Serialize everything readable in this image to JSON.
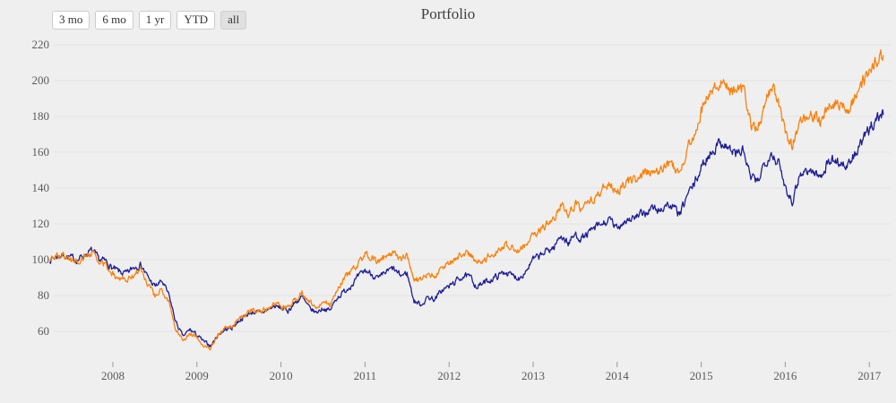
{
  "header": {
    "title": "Portfolio",
    "range_buttons": [
      {
        "label": "3 mo",
        "selected": false
      },
      {
        "label": "6 mo",
        "selected": false
      },
      {
        "label": "1 yr",
        "selected": false
      },
      {
        "label": "YTD",
        "selected": false
      },
      {
        "label": "all",
        "selected": true
      }
    ]
  },
  "chart_data": {
    "type": "line",
    "title": "Portfolio",
    "description": "Two indexed cumulative-return lines (base 100) from spring 2007 to early 2017",
    "x_start_decimal_year": 2007.25,
    "points_per_year": 12,
    "x_axis": {
      "tick_years": [
        2008,
        2009,
        2010,
        2011,
        2012,
        2013,
        2014,
        2015,
        2016,
        2017
      ]
    },
    "y_axis": {
      "ticks": [
        220,
        200,
        180,
        160,
        140,
        120,
        100,
        80,
        60
      ]
    },
    "ylim": [
      45,
      228
    ],
    "xlim_decimal_years": [
      2007.2,
      2017.35
    ],
    "grid": "horizontal",
    "legend_position": "none",
    "background_color": "#efefef",
    "gridline_color": "#e3e3e3",
    "tick_color": "#999999",
    "label_color": "#5a5a5a",
    "series": [
      {
        "name": "navy-line",
        "color": "#1e1e96",
        "monthly_values": [
          100,
          102,
          102.5,
          101,
          100,
          103,
          105,
          100,
          99,
          95,
          93,
          92,
          96,
          97.5,
          90,
          85,
          88,
          80,
          65,
          57,
          61,
          58,
          54,
          52,
          58,
          61,
          62,
          66,
          69,
          71,
          70,
          72,
          74,
          73,
          71.5,
          76,
          79,
          73,
          70.5,
          73,
          71.5,
          79,
          82,
          86,
          90,
          94,
          92,
          89,
          93,
          95,
          91,
          92.5,
          77,
          75,
          79,
          78,
          83,
          85,
          88,
          91,
          90,
          85,
          87,
          89,
          91,
          93.5,
          91,
          90,
          94,
          100,
          102,
          105,
          107,
          114,
          109,
          114,
          112,
          115,
          118,
          120,
          122,
          117,
          122,
          123,
          124,
          126,
          129,
          127,
          131,
          129,
          125,
          136,
          142,
          151,
          158,
          163,
          166,
          162,
          159,
          161,
          146,
          143,
          154,
          160,
          154,
          141,
          133,
          147,
          150,
          149,
          146,
          154,
          156,
          154,
          152,
          159,
          166,
          172,
          180,
          181
        ]
      },
      {
        "name": "orange-line",
        "color": "#f9820d",
        "monthly_values": [
          100,
          102.5,
          102,
          100,
          98.5,
          102,
          104.5,
          98,
          97,
          92,
          90,
          88,
          92,
          94,
          86,
          80,
          83,
          76,
          61,
          55,
          59,
          57,
          52,
          50.5,
          58,
          62,
          63,
          67,
          70,
          72,
          71,
          73,
          75,
          74,
          73,
          78,
          82,
          76,
          73.5,
          77,
          75,
          84,
          89,
          93,
          97,
          103,
          101,
          98,
          102,
          104,
          100,
          102,
          90,
          88.5,
          92,
          91,
          95,
          98,
          101,
          104,
          103,
          98,
          100,
          103,
          105,
          108,
          106,
          105,
          109,
          114,
          116,
          120,
          123,
          131,
          125,
          131,
          128,
          132,
          136,
          139,
          141,
          138,
          143,
          144,
          145,
          148,
          151,
          149,
          154,
          152,
          148,
          162,
          170,
          183,
          192,
          198,
          201,
          196,
          193,
          195,
          176,
          172,
          186,
          196,
          188,
          170,
          163,
          177,
          181,
          180,
          177,
          185,
          188,
          186,
          184,
          190,
          198,
          205,
          212,
          214
        ]
      }
    ]
  }
}
